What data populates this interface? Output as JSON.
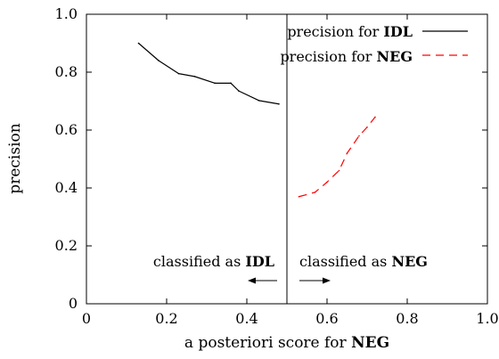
{
  "chart_data": {
    "type": "line",
    "xlabel_prefix": "a posteriori score for ",
    "xlabel_bold": "NEG",
    "ylabel": "precision",
    "xlim": [
      0,
      1
    ],
    "ylim": [
      0,
      1
    ],
    "x_ticks": [
      "0",
      "0.2",
      "0.4",
      "0.6",
      "0.8",
      "1.0"
    ],
    "y_ticks": [
      "0",
      "0.2",
      "0.4",
      "0.6",
      "0.8",
      "1.0"
    ],
    "grid": false,
    "legend_placement": "top-right",
    "threshold_x": 0.5,
    "series": [
      {
        "name_prefix": "precision for ",
        "name_bold": "IDL",
        "color": "#000000",
        "style": "solid",
        "x": [
          0.13,
          0.18,
          0.23,
          0.27,
          0.32,
          0.36,
          0.38,
          0.43,
          0.48
        ],
        "y": [
          0.9,
          0.84,
          0.795,
          0.785,
          0.762,
          0.762,
          0.735,
          0.702,
          0.69
        ]
      },
      {
        "name_prefix": "precision for ",
        "name_bold": "NEG",
        "color": "#ff0000",
        "style": "dashed",
        "x": [
          0.53,
          0.57,
          0.6,
          0.63,
          0.65,
          0.68,
          0.7,
          0.72
        ],
        "y": [
          0.37,
          0.385,
          0.42,
          0.46,
          0.52,
          0.58,
          0.61,
          0.645
        ]
      }
    ],
    "annotations": {
      "left": {
        "prefix": "classified as ",
        "bold": "IDL"
      },
      "right": {
        "prefix": "classified as ",
        "bold": "NEG"
      }
    }
  }
}
